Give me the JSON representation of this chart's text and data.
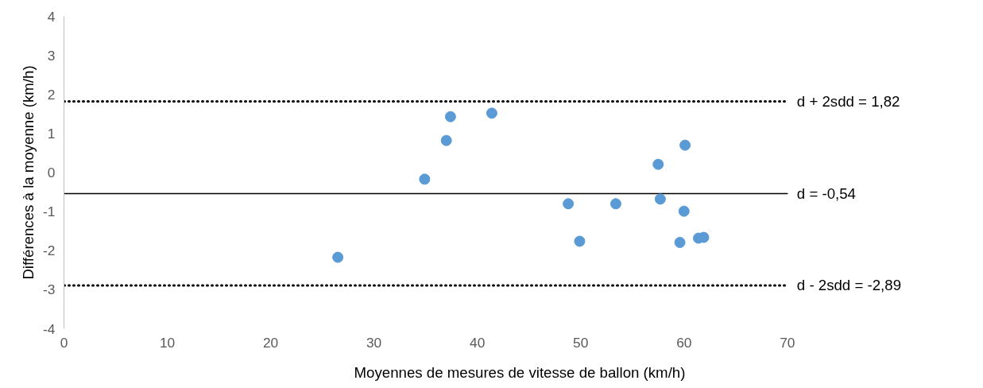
{
  "chart_data": {
    "type": "scatter",
    "xlabel": "Moyennes de mesures de vitesse de ballon (km/h)",
    "ylabel": "Différences à la moyenne (km/h)",
    "x": [
      26.5,
      34.9,
      37.0,
      37.4,
      41.4,
      48.8,
      49.9,
      53.4,
      57.5,
      57.7,
      60.1,
      60.0,
      59.6,
      61.4,
      61.9
    ],
    "series": [
      {
        "color": "#5b9bd5",
        "values": [
          -2.17,
          -0.17,
          0.82,
          1.43,
          1.52,
          -0.8,
          -1.76,
          -0.8,
          0.21,
          -0.68,
          0.7,
          -0.99,
          -1.79,
          -1.68,
          -1.66
        ]
      }
    ],
    "marker": "circle",
    "grid": false,
    "xlim": [
      0,
      70
    ],
    "xticks": [
      0,
      10,
      20,
      30,
      40,
      50,
      60,
      70
    ],
    "ylim": [
      -4,
      4
    ],
    "yticks": [
      -4,
      -3,
      -2,
      -1,
      0,
      1,
      2,
      3,
      4
    ],
    "ref_lines": [
      {
        "axis": "y",
        "value": 1.82,
        "label": "d + 2sdd = 1,82",
        "color": "#000000",
        "line_style": "dotted"
      },
      {
        "axis": "y",
        "value": -0.54,
        "label": "d = -0,54",
        "color": "#000000",
        "line_style": "solid"
      },
      {
        "axis": "y",
        "value": -2.89,
        "label": "d - 2sdd = -2,89",
        "color": "#000000",
        "line_style": "dotted"
      }
    ]
  }
}
